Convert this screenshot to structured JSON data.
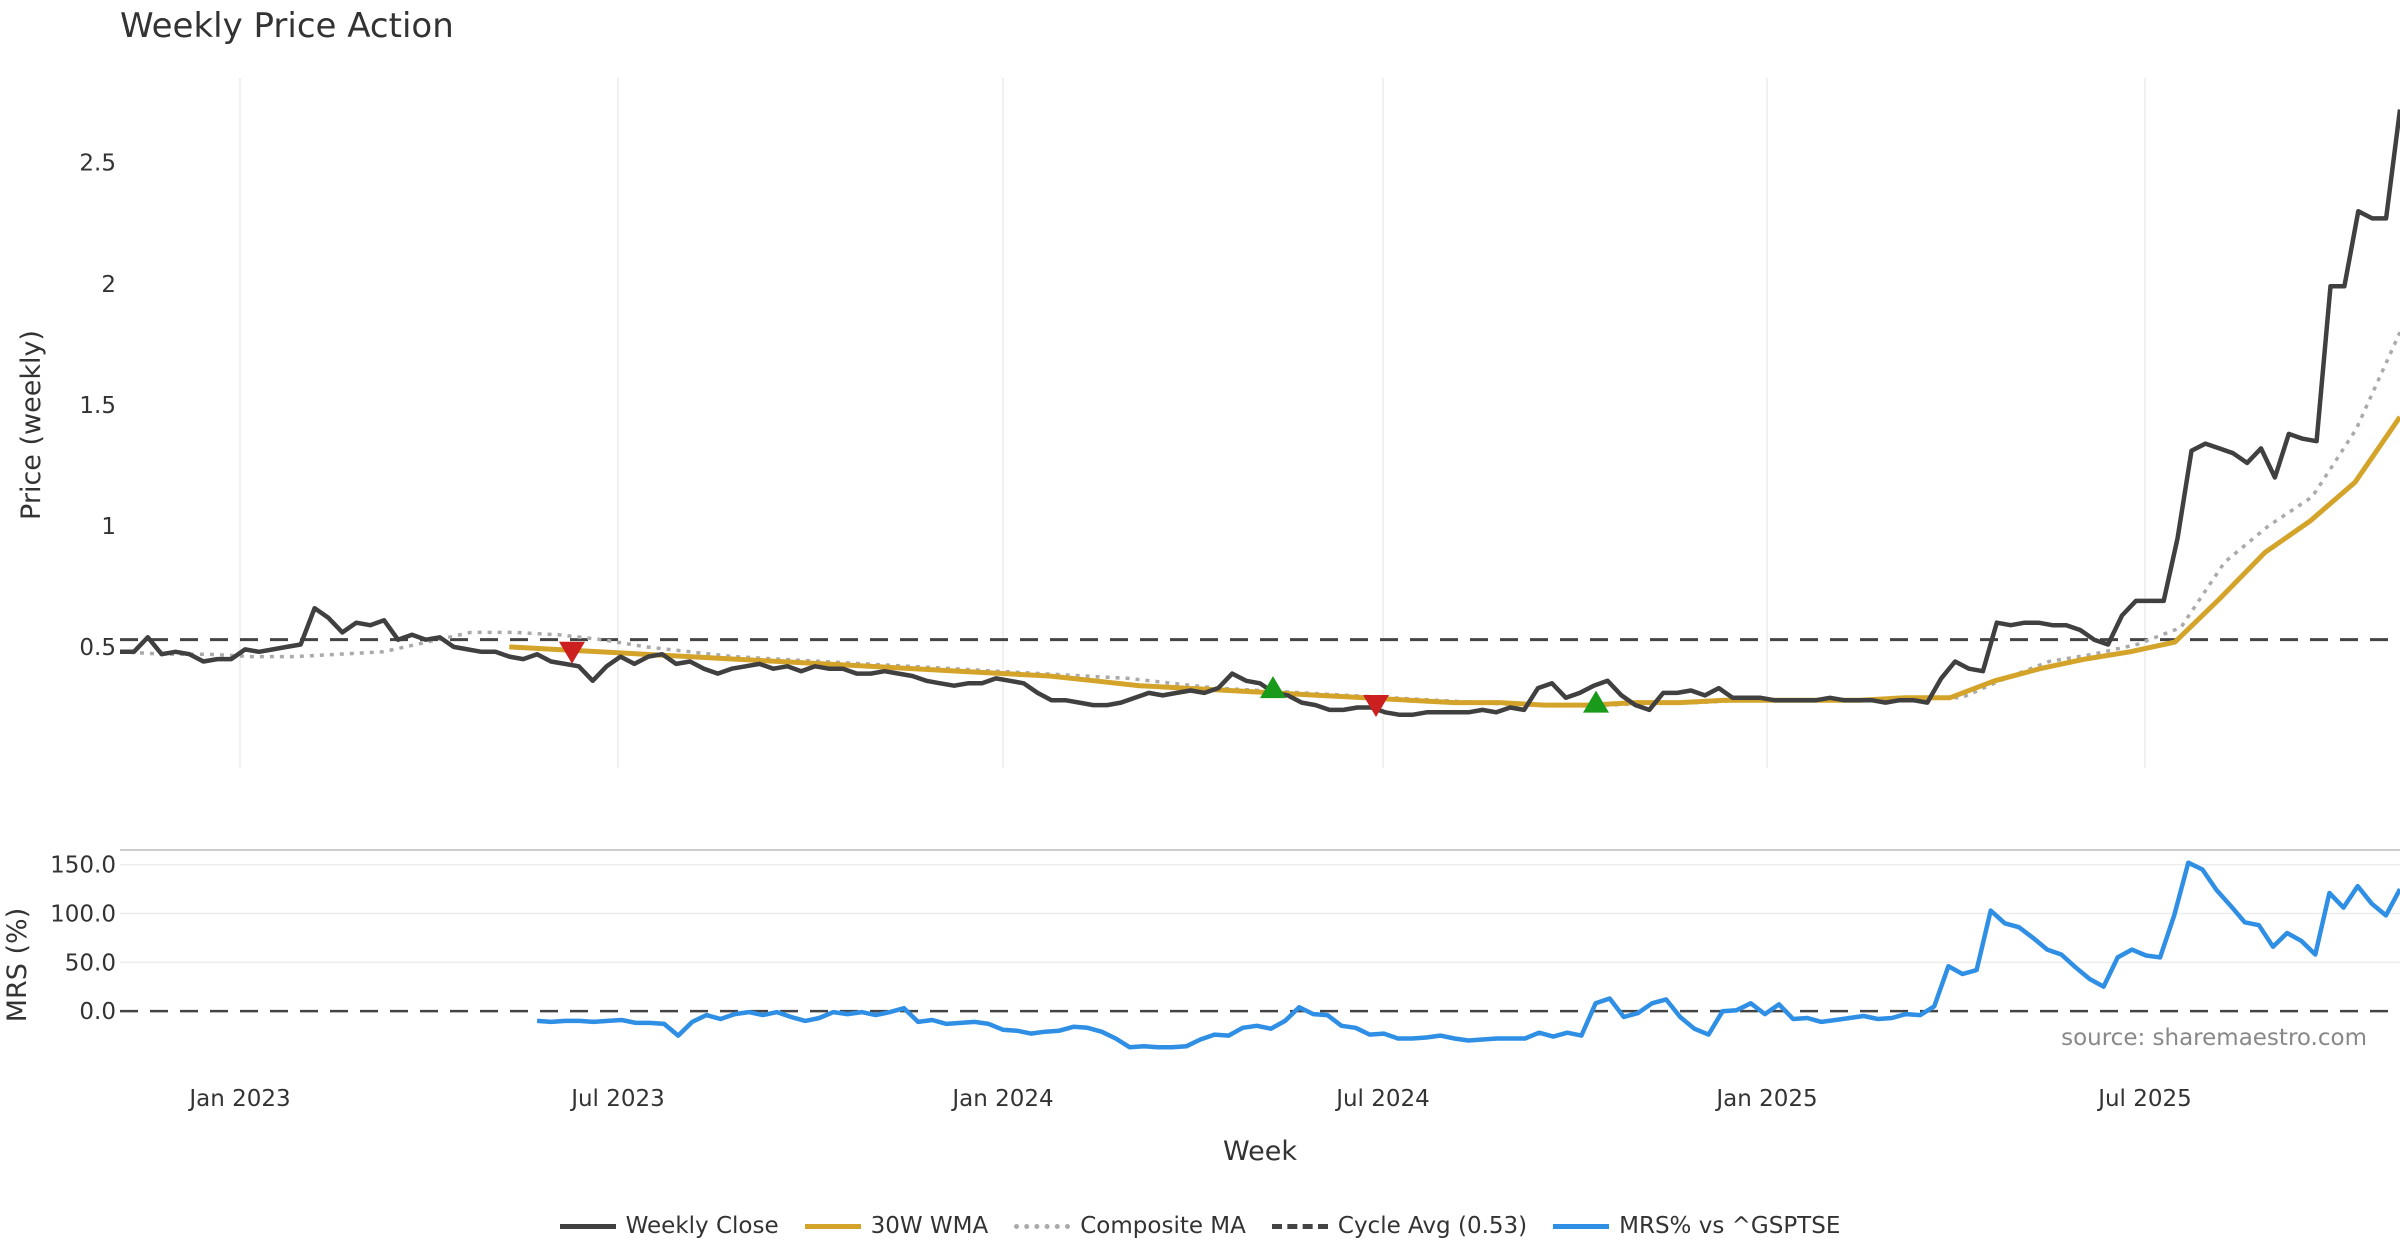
{
  "chart_data": {
    "title": "Weekly Price Action",
    "type": "line",
    "xlabel": "Week",
    "x_ticks": [
      "Jan 2023",
      "Jul 2023",
      "Jan 2024",
      "Jul 2024",
      "Jan 2025",
      "Jul 2025"
    ],
    "source_note": "source: sharemaestro.com",
    "price_panel": {
      "ylabel": "Price (weekly)",
      "y_ticks": [
        "0.5",
        "1",
        "1.5",
        "2",
        "2.5"
      ],
      "y_tick_values": [
        0.5,
        1,
        1.5,
        2,
        2.5
      ],
      "ylim": [
        0,
        2.85
      ],
      "cycle_avg": 0.53,
      "series": [
        {
          "name": "Weekly Close",
          "color": "#404040",
          "values": [
            0.48,
            0.48,
            0.54,
            0.47,
            0.48,
            0.47,
            0.44,
            0.45,
            0.45,
            0.49,
            0.48,
            0.49,
            0.5,
            0.51,
            0.66,
            0.62,
            0.56,
            0.6,
            0.59,
            0.61,
            0.53,
            0.55,
            0.53,
            0.54,
            0.5,
            0.49,
            0.48,
            0.48,
            0.46,
            0.45,
            0.47,
            0.44,
            0.43,
            0.42,
            0.36,
            0.42,
            0.46,
            0.43,
            0.46,
            0.47,
            0.43,
            0.44,
            0.41,
            0.39,
            0.41,
            0.42,
            0.43,
            0.41,
            0.42,
            0.4,
            0.42,
            0.41,
            0.41,
            0.39,
            0.39,
            0.4,
            0.39,
            0.38,
            0.36,
            0.35,
            0.34,
            0.35,
            0.35,
            0.37,
            0.36,
            0.35,
            0.31,
            0.28,
            0.28,
            0.27,
            0.26,
            0.26,
            0.27,
            0.29,
            0.31,
            0.3,
            0.31,
            0.32,
            0.31,
            0.33,
            0.39,
            0.36,
            0.35,
            0.31,
            0.3,
            0.27,
            0.26,
            0.24,
            0.24,
            0.25,
            0.25,
            0.23,
            0.22,
            0.22,
            0.23,
            0.23,
            0.23,
            0.23,
            0.24,
            0.23,
            0.25,
            0.24,
            0.33,
            0.35,
            0.29,
            0.31,
            0.34,
            0.36,
            0.3,
            0.26,
            0.24,
            0.31,
            0.31,
            0.32,
            0.3,
            0.33,
            0.29,
            0.29,
            0.29,
            0.28,
            0.28,
            0.28,
            0.28,
            0.29,
            0.28,
            0.28,
            0.28,
            0.27,
            0.28,
            0.28,
            0.27,
            0.37,
            0.44,
            0.41,
            0.4,
            0.6,
            0.59,
            0.6,
            0.6,
            0.59,
            0.59,
            0.57,
            0.53,
            0.51,
            0.63,
            0.69,
            0.69,
            0.69,
            0.95,
            1.31,
            1.34,
            1.32,
            1.3,
            1.26,
            1.32,
            1.2,
            1.38,
            1.36,
            1.35,
            1.99,
            1.99,
            2.3,
            2.27,
            2.27,
            2.72
          ]
        },
        {
          "name": "30W WMA",
          "color": "#d4a42a",
          "start_week": 28,
          "values": [
            0.5,
            0.49,
            0.48,
            0.47,
            0.46,
            0.45,
            0.44,
            0.43,
            0.42,
            0.41,
            0.4,
            0.39,
            0.38,
            0.36,
            0.34,
            0.33,
            0.32,
            0.31,
            0.3,
            0.29,
            0.28,
            0.27,
            0.27,
            0.26,
            0.26,
            0.27,
            0.27,
            0.28,
            0.28,
            0.28,
            0.28,
            0.29,
            0.29,
            0.36,
            0.41,
            0.45,
            0.48,
            0.52,
            0.7,
            0.89,
            1.02,
            1.18,
            1.45
          ]
        },
        {
          "name": "Composite MA",
          "color": "#aaaaaa",
          "values": [
            0.48,
            0.47,
            0.47,
            0.46,
            0.46,
            0.47,
            0.48,
            0.52,
            0.56,
            0.56,
            0.55,
            0.53,
            0.5,
            0.48,
            0.46,
            0.45,
            0.44,
            0.43,
            0.42,
            0.41,
            0.4,
            0.39,
            0.38,
            0.37,
            0.35,
            0.33,
            0.32,
            0.31,
            0.3,
            0.29,
            0.28,
            0.27,
            0.26,
            0.26,
            0.26,
            0.27,
            0.27,
            0.28,
            0.28,
            0.28,
            0.28,
            0.29,
            0.29,
            0.37,
            0.44,
            0.47,
            0.51,
            0.58,
            0.85,
            1.0,
            1.12,
            1.4,
            1.8
          ]
        }
      ],
      "signals": [
        {
          "type": "down",
          "date": "Jun 2023",
          "value": 0.48,
          "color": "#cc1f1f"
        },
        {
          "type": "up",
          "date": "May 2024",
          "value": 0.33,
          "color": "#1a9a1a"
        },
        {
          "type": "down",
          "date": "Jul 2024",
          "value": 0.26,
          "color": "#cc1f1f"
        },
        {
          "type": "up",
          "date": "Oct 2024",
          "value": 0.27,
          "color": "#1a9a1a"
        }
      ]
    },
    "mrs_panel": {
      "ylabel": "MRS (%)",
      "y_ticks": [
        "0.0",
        "50.0",
        "100.0",
        "150.0"
      ],
      "y_tick_values": [
        0,
        50,
        100,
        150
      ],
      "ylim": [
        -50,
        165
      ],
      "series": {
        "name": "MRS% vs ^GSPTSE",
        "color": "#2f8fe5",
        "start_week": 30,
        "values": [
          -10,
          -11,
          -10,
          -10,
          -11,
          -10,
          -9,
          -12,
          -12,
          -13,
          -25,
          -11,
          -4,
          -8,
          -3,
          -1,
          -4,
          -1,
          -6,
          -10,
          -7,
          -1,
          -3,
          -1,
          -4,
          -1,
          3,
          -11,
          -9,
          -13,
          -12,
          -11,
          -13,
          -19,
          -20,
          -23,
          -21,
          -20,
          -16,
          -17,
          -21,
          -28,
          -37,
          -36,
          -37,
          -37,
          -36,
          -29,
          -24,
          -25,
          -17,
          -15,
          -18,
          -10,
          4,
          -3,
          -4,
          -15,
          -17,
          -24,
          -23,
          -28,
          -28,
          -27,
          -25,
          -28,
          -30,
          -29,
          -28,
          -28,
          -28,
          -22,
          -26,
          -22,
          -25,
          8,
          13,
          -6,
          -2,
          8,
          12,
          -6,
          -18,
          -24,
          0,
          1,
          8,
          -3,
          7,
          -8,
          -7,
          -11,
          -9,
          -7,
          -5,
          -8,
          -7,
          -3,
          -4,
          5,
          46,
          38,
          42,
          103,
          90,
          86,
          75,
          63,
          58,
          45,
          33,
          25,
          55,
          63,
          57,
          55,
          98,
          152,
          145,
          124,
          108,
          91,
          88,
          66,
          80,
          72,
          58,
          121,
          106,
          128,
          110,
          98,
          125
        ]
      }
    },
    "legend": [
      {
        "label": "Weekly Close",
        "color": "#404040",
        "style": "solid"
      },
      {
        "label": "30W WMA",
        "color": "#d4a42a",
        "style": "solid"
      },
      {
        "label": "Composite MA",
        "color": "#aaaaaa",
        "style": "dotted"
      },
      {
        "label": "Cycle Avg (0.53)",
        "color": "#444444",
        "style": "dashed"
      },
      {
        "label": "MRS% vs ^GSPTSE",
        "color": "#2f8fe5",
        "style": "solid"
      }
    ]
  }
}
